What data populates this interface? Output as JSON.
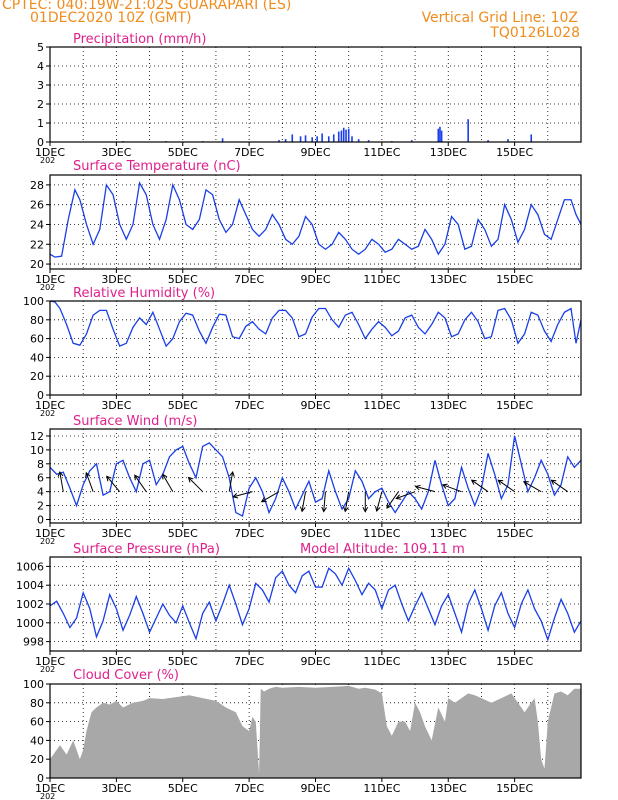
{
  "header": {
    "line1_left": "CPTEC:   040:19W-21:02S   GUARAPARI (ES)",
    "line2_left": "01DEC2020 10Z (GMT)",
    "line2_right": "Vertical Grid Line: 10Z",
    "line3_right": "TQ0126L028"
  },
  "colors": {
    "header": "#f08c1e",
    "title": "#e0208c",
    "series": "#1a3fe6",
    "cloud": "#a8a8a8",
    "arrows": "#000000",
    "grid": "#000000"
  },
  "x_ticks": [
    "1DEC",
    "3DEC",
    "5DEC",
    "7DEC",
    "9DEC",
    "11DEC",
    "13DEC",
    "15DEC"
  ],
  "x_stub_label": "202",
  "chart_data": [
    {
      "type": "bar",
      "title": "Precipitation (mm/h)",
      "ylim": [
        0,
        5
      ],
      "yticks": [
        0,
        1,
        2,
        3,
        4,
        5
      ],
      "x_days": [
        2.2,
        3.5,
        4.6,
        5.2,
        6.9,
        7.1,
        7.3,
        7.55,
        7.7,
        7.9,
        8.05,
        8.2,
        8.4,
        8.55,
        8.7,
        8.78,
        8.85,
        8.92,
        9.0,
        9.1,
        9.3,
        9.6,
        10.3,
        10.9,
        11.7,
        11.75,
        11.8,
        12.6,
        13.2,
        13.8,
        14.5
      ],
      "values": [
        0.05,
        0.05,
        0.05,
        0.2,
        0.1,
        0.15,
        0.4,
        0.3,
        0.35,
        0.25,
        0.3,
        0.45,
        0.3,
        0.4,
        0.55,
        0.6,
        0.75,
        0.65,
        0.7,
        0.3,
        0.15,
        0.1,
        0.05,
        0.1,
        0.7,
        0.8,
        0.6,
        1.2,
        0.1,
        0.15,
        0.4
      ]
    },
    {
      "type": "line",
      "title": "Surface Temperature (nC)",
      "ylim": [
        19.5,
        29
      ],
      "yticks": [
        20,
        22,
        24,
        26,
        28
      ],
      "x_days": [
        0.0,
        0.15,
        0.35,
        0.55,
        0.75,
        0.9,
        1.1,
        1.3,
        1.5,
        1.7,
        1.9,
        2.1,
        2.3,
        2.5,
        2.7,
        2.9,
        3.1,
        3.3,
        3.5,
        3.7,
        3.9,
        4.1,
        4.3,
        4.5,
        4.7,
        4.9,
        5.1,
        5.3,
        5.5,
        5.7,
        5.9,
        6.1,
        6.3,
        6.5,
        6.7,
        6.9,
        7.1,
        7.3,
        7.5,
        7.7,
        7.9,
        8.1,
        8.3,
        8.5,
        8.7,
        8.9,
        9.1,
        9.3,
        9.5,
        9.7,
        9.9,
        10.1,
        10.3,
        10.5,
        10.7,
        10.9,
        11.1,
        11.3,
        11.5,
        11.7,
        11.9,
        12.1,
        12.3,
        12.5,
        12.7,
        12.9,
        13.1,
        13.3,
        13.5,
        13.7,
        13.9,
        14.1,
        14.3,
        14.5,
        14.7,
        14.9,
        15.1,
        15.3,
        15.5,
        15.7,
        15.85,
        16.0
      ],
      "values": [
        21.0,
        20.7,
        20.8,
        24.5,
        27.5,
        26.5,
        24.0,
        22.0,
        23.5,
        28.0,
        27.0,
        24.0,
        22.5,
        24.0,
        28.2,
        27.0,
        24.0,
        22.5,
        24.5,
        28.0,
        26.5,
        24.0,
        23.5,
        24.5,
        27.5,
        27.0,
        24.5,
        23.2,
        24.0,
        26.5,
        25.0,
        23.5,
        22.8,
        23.5,
        25.0,
        24.0,
        22.5,
        22.0,
        22.8,
        24.8,
        24.0,
        22.0,
        21.5,
        22.0,
        23.2,
        22.5,
        21.5,
        21.0,
        21.5,
        22.5,
        22.0,
        21.2,
        21.5,
        22.5,
        22.0,
        21.5,
        21.8,
        23.5,
        22.5,
        21.0,
        22.0,
        24.8,
        24.0,
        21.5,
        21.8,
        24.5,
        23.5,
        21.8,
        22.5,
        26.0,
        24.5,
        22.2,
        23.5,
        26.0,
        25.0,
        23.0,
        22.5,
        24.5,
        26.5,
        26.5,
        25.0,
        24.0
      ]
    },
    {
      "type": "line",
      "title": "Relative Humidity (%)",
      "ylim": [
        0,
        100
      ],
      "yticks": [
        0,
        20,
        40,
        60,
        80,
        100
      ],
      "x_days": [
        0.0,
        0.15,
        0.3,
        0.5,
        0.7,
        0.9,
        1.1,
        1.3,
        1.5,
        1.7,
        1.9,
        2.1,
        2.3,
        2.5,
        2.7,
        2.9,
        3.1,
        3.3,
        3.5,
        3.7,
        3.9,
        4.1,
        4.3,
        4.5,
        4.7,
        4.9,
        5.1,
        5.3,
        5.5,
        5.7,
        5.9,
        6.1,
        6.3,
        6.5,
        6.7,
        6.9,
        7.1,
        7.3,
        7.5,
        7.7,
        7.9,
        8.1,
        8.3,
        8.5,
        8.7,
        8.9,
        9.1,
        9.3,
        9.5,
        9.7,
        9.9,
        10.1,
        10.3,
        10.5,
        10.7,
        10.9,
        11.1,
        11.3,
        11.5,
        11.7,
        11.9,
        12.1,
        12.3,
        12.5,
        12.7,
        12.9,
        13.1,
        13.3,
        13.5,
        13.7,
        13.9,
        14.1,
        14.3,
        14.5,
        14.7,
        14.9,
        15.1,
        15.3,
        15.5,
        15.7,
        15.85,
        16.0
      ],
      "values": [
        100,
        99,
        92,
        75,
        55,
        53,
        65,
        85,
        90,
        90,
        70,
        52,
        55,
        72,
        82,
        75,
        88,
        70,
        52,
        60,
        78,
        87,
        85,
        68,
        55,
        72,
        86,
        85,
        62,
        60,
        73,
        78,
        70,
        65,
        82,
        90,
        90,
        82,
        62,
        65,
        83,
        92,
        92,
        80,
        72,
        85,
        88,
        75,
        60,
        70,
        78,
        72,
        63,
        68,
        82,
        85,
        72,
        65,
        75,
        88,
        82,
        62,
        65,
        80,
        88,
        78,
        60,
        62,
        90,
        92,
        80,
        55,
        65,
        88,
        85,
        68,
        57,
        75,
        88,
        92,
        55,
        80
      ]
    },
    {
      "type": "line",
      "title": "Surface Wind (m/s)",
      "ylim": [
        -0.5,
        13
      ],
      "yticks": [
        0,
        2,
        4,
        6,
        8,
        10,
        12
      ],
      "x_days": [
        0.0,
        0.2,
        0.4,
        0.6,
        0.8,
        1.0,
        1.2,
        1.4,
        1.6,
        1.8,
        2.0,
        2.2,
        2.4,
        2.6,
        2.8,
        3.0,
        3.2,
        3.4,
        3.6,
        3.8,
        4.0,
        4.2,
        4.4,
        4.6,
        4.8,
        5.0,
        5.2,
        5.4,
        5.6,
        5.8,
        6.0,
        6.2,
        6.4,
        6.6,
        6.8,
        7.0,
        7.2,
        7.4,
        7.6,
        7.8,
        8.0,
        8.2,
        8.4,
        8.6,
        8.8,
        9.0,
        9.2,
        9.4,
        9.6,
        9.8,
        10.0,
        10.2,
        10.4,
        10.6,
        10.8,
        11.0,
        11.2,
        11.4,
        11.6,
        11.8,
        12.0,
        12.2,
        12.4,
        12.6,
        12.8,
        13.0,
        13.2,
        13.4,
        13.6,
        13.8,
        14.0,
        14.2,
        14.4,
        14.6,
        14.8,
        15.0,
        15.2,
        15.4,
        15.6,
        15.8,
        16.0
      ],
      "values": [
        7.5,
        6.5,
        6.8,
        4.5,
        2.0,
        5.0,
        7.0,
        8.0,
        3.5,
        4.0,
        8.0,
        8.5,
        6.0,
        4.0,
        8.0,
        8.5,
        5.0,
        6.5,
        9.0,
        10.0,
        10.5,
        8.0,
        6.0,
        10.5,
        11.0,
        10.0,
        9.0,
        6.0,
        1.0,
        0.5,
        4.5,
        6.0,
        4.0,
        1.0,
        3.0,
        6.0,
        4.0,
        1.5,
        3.5,
        5.5,
        2.5,
        3.0,
        7.0,
        4.0,
        1.5,
        3.0,
        7.0,
        5.5,
        3.0,
        4.0,
        4.5,
        2.5,
        1.0,
        2.5,
        4.0,
        3.0,
        1.5,
        4.0,
        8.5,
        5.0,
        2.0,
        3.0,
        7.5,
        4.5,
        2.0,
        4.5,
        9.5,
        6.5,
        3.0,
        5.0,
        12.0,
        8.0,
        4.0,
        6.0,
        8.5,
        6.5,
        3.5,
        5.0,
        9.0,
        7.5,
        8.5
      ],
      "arrows": [
        {
          "day": 0.4,
          "dir_deg": 260
        },
        {
          "day": 1.3,
          "dir_deg": 250
        },
        {
          "day": 2.1,
          "dir_deg": 230
        },
        {
          "day": 2.9,
          "dir_deg": 235
        },
        {
          "day": 3.7,
          "dir_deg": 240
        },
        {
          "day": 4.6,
          "dir_deg": 225
        },
        {
          "day": 5.4,
          "dir_deg": 280
        },
        {
          "day": 6.1,
          "dir_deg": 165
        },
        {
          "day": 6.9,
          "dir_deg": 150
        },
        {
          "day": 7.7,
          "dir_deg": 100
        },
        {
          "day": 8.3,
          "dir_deg": 95
        },
        {
          "day": 9.0,
          "dir_deg": 100
        },
        {
          "day": 9.5,
          "dir_deg": 90
        },
        {
          "day": 10.0,
          "dir_deg": 105
        },
        {
          "day": 10.5,
          "dir_deg": 125
        },
        {
          "day": 11.0,
          "dir_deg": 160
        },
        {
          "day": 11.6,
          "dir_deg": 195
        },
        {
          "day": 12.4,
          "dir_deg": 200
        },
        {
          "day": 13.2,
          "dir_deg": 215
        },
        {
          "day": 14.0,
          "dir_deg": 215
        },
        {
          "day": 14.8,
          "dir_deg": 210
        },
        {
          "day": 15.6,
          "dir_deg": 215
        }
      ]
    },
    {
      "type": "line",
      "title": "Surface Pressure (hPa)",
      "subtitle": "Model Altitude: 109.11  m",
      "ylim": [
        997,
        1007
      ],
      "yticks": [
        998,
        1000,
        1002,
        1004,
        1006
      ],
      "x_days": [
        0.0,
        0.2,
        0.4,
        0.6,
        0.8,
        1.0,
        1.2,
        1.4,
        1.6,
        1.8,
        2.0,
        2.2,
        2.4,
        2.6,
        2.8,
        3.0,
        3.2,
        3.4,
        3.6,
        3.8,
        4.0,
        4.2,
        4.4,
        4.6,
        4.8,
        5.0,
        5.2,
        5.4,
        5.6,
        5.8,
        6.0,
        6.2,
        6.4,
        6.6,
        6.8,
        7.0,
        7.2,
        7.4,
        7.6,
        7.8,
        8.0,
        8.2,
        8.4,
        8.6,
        8.8,
        9.0,
        9.2,
        9.4,
        9.6,
        9.8,
        10.0,
        10.2,
        10.4,
        10.6,
        10.8,
        11.0,
        11.2,
        11.4,
        11.6,
        11.8,
        12.0,
        12.2,
        12.4,
        12.6,
        12.8,
        13.0,
        13.2,
        13.4,
        13.6,
        13.8,
        14.0,
        14.2,
        14.4,
        14.6,
        14.8,
        15.0,
        15.2,
        15.4,
        15.6,
        15.8,
        16.0
      ],
      "values": [
        1001.8,
        1002.3,
        1001.0,
        999.5,
        1000.5,
        1003.2,
        1001.5,
        998.5,
        1000.2,
        1003.0,
        1001.5,
        999.2,
        1000.8,
        1002.8,
        1001.0,
        999.0,
        1000.5,
        1002.0,
        1000.8,
        1000.0,
        1001.8,
        1000.0,
        998.3,
        1001.0,
        1002.2,
        1000.2,
        1002.0,
        1004.0,
        1002.0,
        999.8,
        1001.5,
        1004.2,
        1003.5,
        1002.2,
        1004.8,
        1005.5,
        1004.0,
        1003.2,
        1005.0,
        1005.5,
        1003.8,
        1003.8,
        1005.8,
        1005.2,
        1004.0,
        1005.8,
        1004.5,
        1003.0,
        1004.2,
        1003.5,
        1001.5,
        1003.5,
        1004.0,
        1002.0,
        1000.2,
        1001.8,
        1003.2,
        1001.5,
        999.8,
        1001.8,
        1003.0,
        1001.0,
        999.0,
        1002.0,
        1003.5,
        1001.5,
        999.2,
        1001.8,
        1003.2,
        1001.0,
        999.5,
        1002.0,
        1003.5,
        1001.5,
        1000.2,
        998.2,
        1000.5,
        1002.5,
        1001.0,
        999.0,
        1000.2
      ]
    },
    {
      "type": "area",
      "title": "Cloud Cover (%)",
      "ylim": [
        0,
        100
      ],
      "yticks": [
        0,
        20,
        40,
        60,
        80,
        100
      ],
      "x_days": [
        0.0,
        0.3,
        0.5,
        0.7,
        0.9,
        1.0,
        1.1,
        1.25,
        1.4,
        1.6,
        1.8,
        2.0,
        2.2,
        2.5,
        2.8,
        3.0,
        3.4,
        3.8,
        4.2,
        4.6,
        5.0,
        5.3,
        5.6,
        5.8,
        6.0,
        6.1,
        6.2,
        6.3,
        6.35,
        6.45,
        6.6,
        6.8,
        7.0,
        7.5,
        8.0,
        8.5,
        9.0,
        9.3,
        9.5,
        9.8,
        10.0,
        10.15,
        10.3,
        10.5,
        10.7,
        10.85,
        11.0,
        11.15,
        11.3,
        11.5,
        11.7,
        11.9,
        12.0,
        12.2,
        12.4,
        12.6,
        12.8,
        13.0,
        13.3,
        13.6,
        13.9,
        14.1,
        14.3,
        14.5,
        14.6,
        14.7,
        14.8,
        14.9,
        15.0,
        15.2,
        15.4,
        15.6,
        15.8,
        16.0
      ],
      "values": [
        20,
        35,
        25,
        40,
        20,
        30,
        50,
        70,
        75,
        80,
        78,
        82,
        75,
        80,
        82,
        85,
        84,
        86,
        88,
        85,
        82,
        75,
        70,
        55,
        50,
        65,
        60,
        5,
        95,
        92,
        95,
        97,
        96,
        97,
        96,
        97,
        98,
        95,
        96,
        94,
        90,
        55,
        45,
        60,
        60,
        50,
        80,
        70,
        55,
        40,
        75,
        60,
        85,
        80,
        85,
        90,
        88,
        85,
        80,
        85,
        90,
        80,
        70,
        80,
        85,
        60,
        20,
        10,
        60,
        90,
        92,
        88,
        95,
        95
      ]
    }
  ]
}
